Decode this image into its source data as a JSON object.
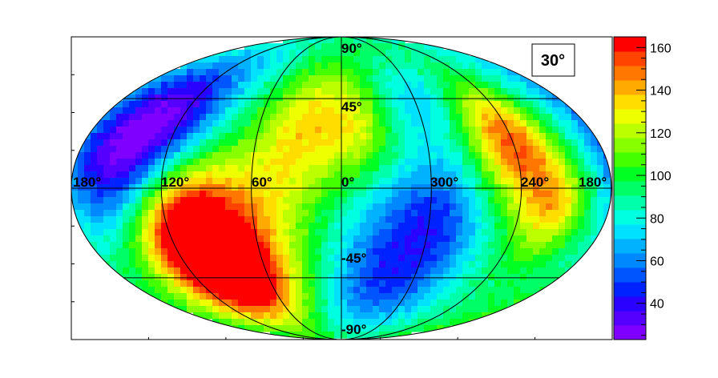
{
  "chart_data": {
    "type": "heatmap",
    "projection": "mollweide",
    "annotation": "30°",
    "longitude_labels": [
      "180°",
      "120°",
      "60°",
      "0°",
      "300°",
      "240°",
      "180°"
    ],
    "latitude_labels": [
      "90°",
      "45°",
      "-45°",
      "-90°"
    ],
    "colorbar": {
      "ticks": [
        40,
        60,
        80,
        100,
        120,
        140,
        160
      ],
      "range": [
        23,
        165
      ],
      "colors": [
        "#7f00ff",
        "#5500ff",
        "#2a00ff",
        "#0022ff",
        "#0055ff",
        "#0088ff",
        "#00b2ff",
        "#00e0ff",
        "#00ffe0",
        "#00ffaa",
        "#00ff66",
        "#00ff22",
        "#44ff00",
        "#88ff00",
        "#bbff00",
        "#eeff00",
        "#ffdd00",
        "#ffaa00",
        "#ff7700",
        "#ff4400",
        "#ff0000"
      ]
    },
    "grid": true,
    "features": [
      {
        "description": "high",
        "lon": 95,
        "lat": -30,
        "value": 160
      },
      {
        "description": "high",
        "lon": 240,
        "lat": 18,
        "value": 145
      },
      {
        "description": "high",
        "lon": 20,
        "lat": 35,
        "value": 130
      },
      {
        "description": "high",
        "lon": 218,
        "lat": -8,
        "value": 135
      },
      {
        "description": "low",
        "lon": 140,
        "lat": 25,
        "value": 30
      },
      {
        "description": "low",
        "lon": 315,
        "lat": -30,
        "value": 48
      },
      {
        "description": "low",
        "lon": 300,
        "lat": 45,
        "value": 70
      }
    ]
  }
}
